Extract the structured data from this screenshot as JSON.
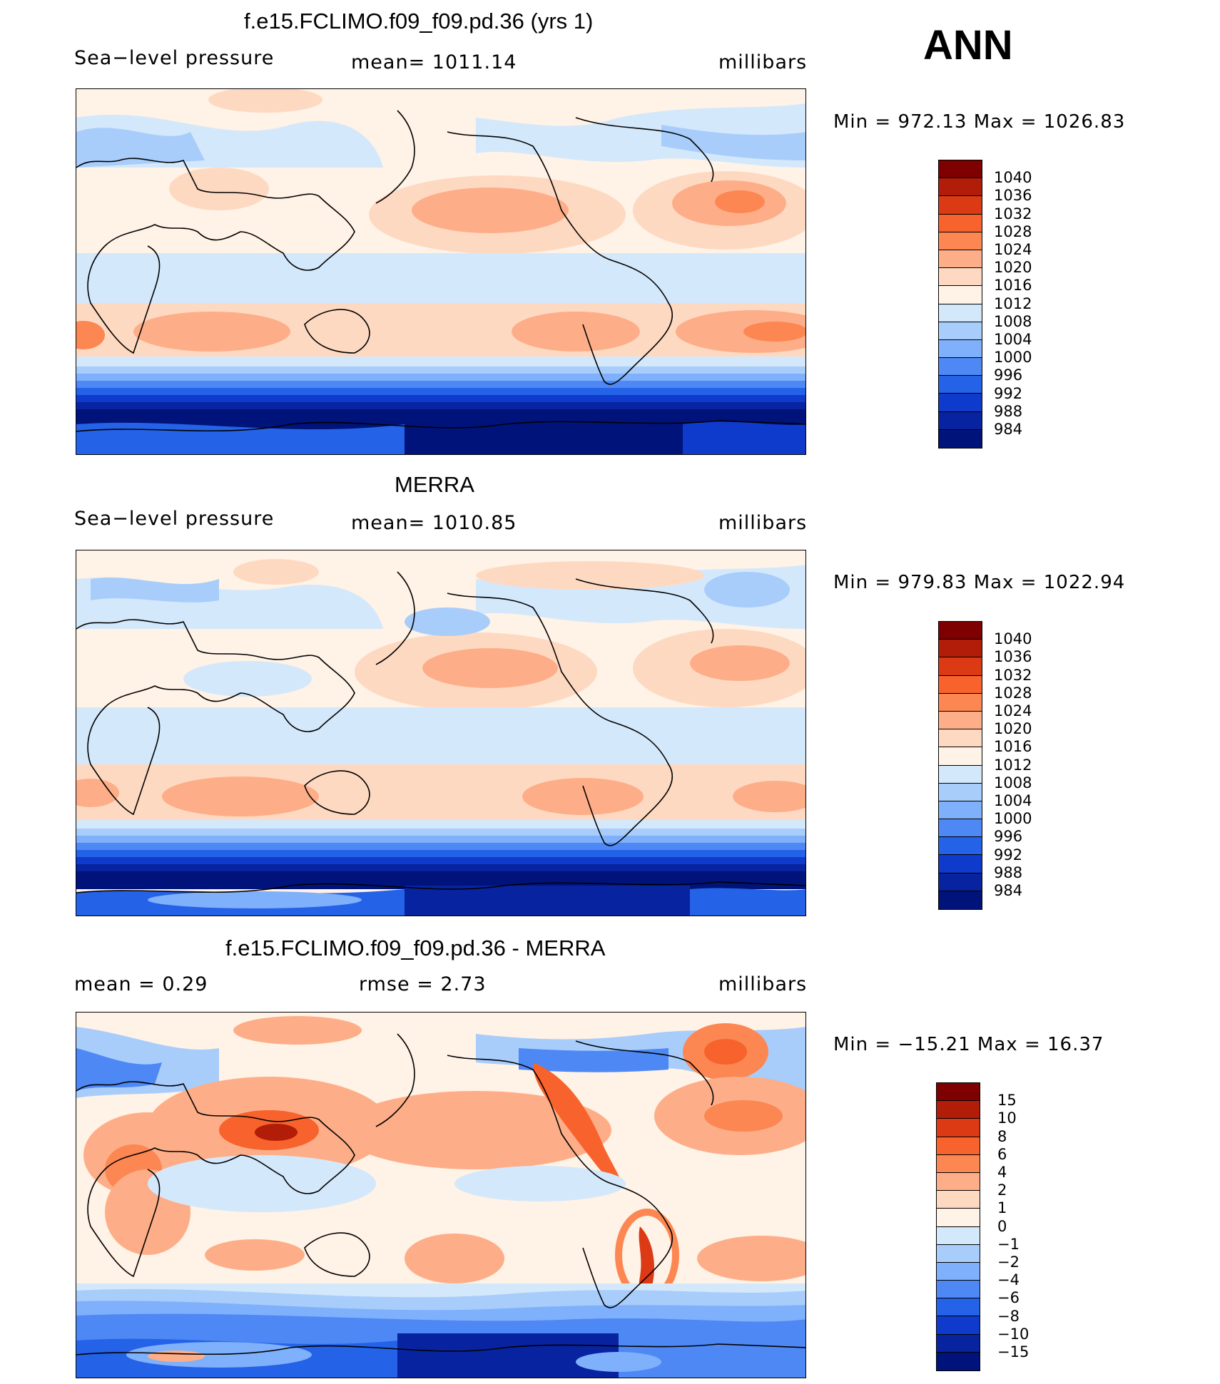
{
  "season": "ANN",
  "panels": [
    {
      "id": "model",
      "title": "f.e15.FCLIMO.f09_f09.pd.36 (yrs 1)",
      "left_label": "Sea−level pressure",
      "center_label": "mean=  1011.14",
      "right_label": "millibars",
      "minmax": "Min  =  972.13  Max  =  1026.83",
      "colorbar": {
        "colors": [
          "#7f0000",
          "#b21d0a",
          "#db3a14",
          "#f8622c",
          "#fc8752",
          "#fdae88",
          "#fed9c2",
          "#fff2e6",
          "#d4e8fb",
          "#a8cdfb",
          "#7fb0fb",
          "#4e88f4",
          "#2462e8",
          "#0f3bcc",
          "#0823a0",
          "#00137a"
        ],
        "labels": [
          "1040",
          "1036",
          "1032",
          "1028",
          "1024",
          "1020",
          "1016",
          "1012",
          "1008",
          "1004",
          "1000",
          "996",
          "992",
          "988",
          "984"
        ]
      }
    },
    {
      "id": "obs",
      "title": "MERRA",
      "left_label": "Sea−level pressure",
      "center_label": "mean=  1010.85",
      "right_label": "millibars",
      "minmax": "Min  =  979.83  Max  =  1022.94",
      "colorbar": {
        "colors": [
          "#7f0000",
          "#b21d0a",
          "#db3a14",
          "#f8622c",
          "#fc8752",
          "#fdae88",
          "#fed9c2",
          "#fff2e6",
          "#d4e8fb",
          "#a8cdfb",
          "#7fb0fb",
          "#4e88f4",
          "#2462e8",
          "#0f3bcc",
          "#0823a0",
          "#00137a"
        ],
        "labels": [
          "1040",
          "1036",
          "1032",
          "1028",
          "1024",
          "1020",
          "1016",
          "1012",
          "1008",
          "1004",
          "1000",
          "996",
          "992",
          "988",
          "984"
        ]
      }
    },
    {
      "id": "diff",
      "title": "f.e15.FCLIMO.f09_f09.pd.36 - MERRA",
      "left_label": "mean =      0.29",
      "center_label": "rmse =      2.73",
      "right_label": "millibars",
      "minmax": "Min  =  −15.21  Max  =     16.37",
      "colorbar": {
        "colors": [
          "#7f0000",
          "#b21d0a",
          "#db3a14",
          "#f8622c",
          "#fc8752",
          "#fdae88",
          "#fed9c2",
          "#fff2e6",
          "#d4e8fb",
          "#a8cdfb",
          "#7fb0fb",
          "#4e88f4",
          "#2462e8",
          "#0f3bcc",
          "#0823a0",
          "#00137a"
        ],
        "labels": [
          "15",
          "10",
          "8",
          "6",
          "4",
          "2",
          "1",
          "0",
          "−1",
          "−2",
          "−4",
          "−6",
          "−8",
          "−10",
          "−15"
        ]
      }
    }
  ]
}
